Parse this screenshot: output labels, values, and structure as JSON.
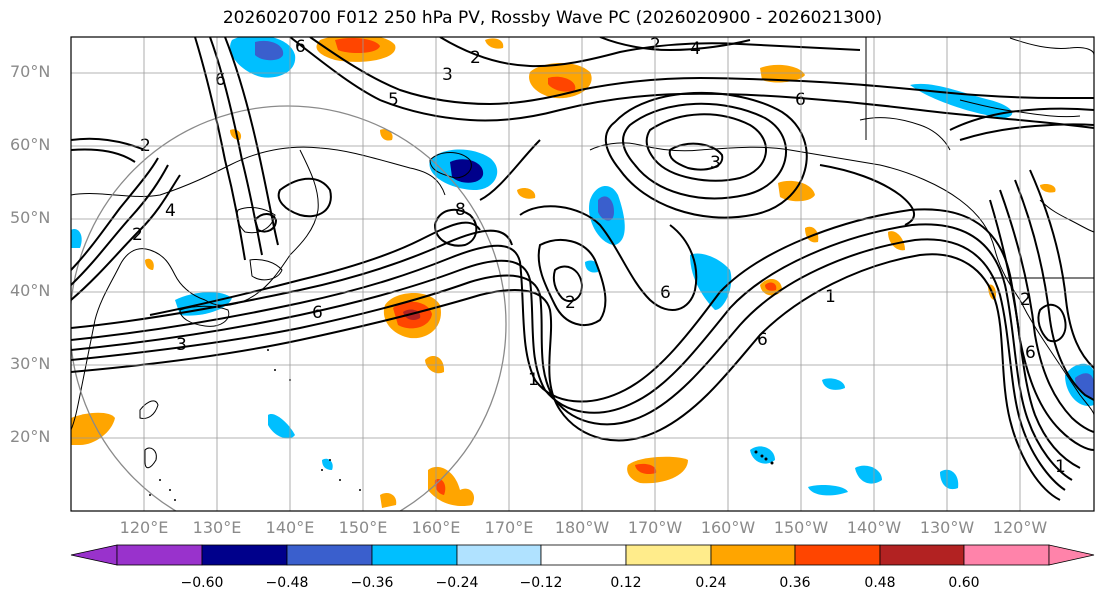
{
  "title": "2026020700 F012 250 hPa PV, Rossby Wave PC (2026020900 - 2026021300)",
  "lat_labels": [
    "70°N",
    "60°N",
    "50°N",
    "40°N",
    "30°N",
    "20°N"
  ],
  "lon_labels": [
    "120°E",
    "130°E",
    "140°E",
    "150°E",
    "160°E",
    "170°E",
    "180°W",
    "170°W",
    "160°W",
    "150°W",
    "140°W",
    "130°W",
    "120°W"
  ],
  "colorbar": {
    "colors": [
      "#9932cc",
      "#00008b",
      "#3a5fcd",
      "#00bfff",
      "#b0e2ff",
      "#ffffff",
      "#ffec8b",
      "#ffa500",
      "#ff4500",
      "#b22222",
      "#ff83aa"
    ],
    "tick_labels": [
      "−0.60",
      "−0.48",
      "−0.36",
      "−0.24",
      "−0.12",
      "0.12",
      "0.24",
      "0.36",
      "0.48",
      "0.60"
    ]
  },
  "contour_labels": [
    "2",
    "2",
    "4",
    "6",
    "3",
    "2",
    "5",
    "6",
    "8",
    "2",
    "4",
    "6",
    "3",
    "3",
    "6",
    "2",
    "2",
    "6",
    "6",
    "1",
    "1",
    "6",
    "1"
  ]
}
